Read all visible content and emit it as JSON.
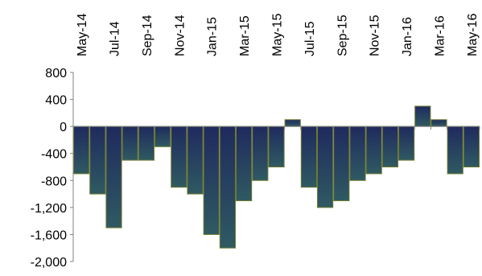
{
  "chart_data": {
    "type": "bar",
    "categories": [
      "May-14",
      "Jun-14",
      "Jul-14",
      "Aug-14",
      "Sep-14",
      "Oct-14",
      "Nov-14",
      "Dec-14",
      "Jan-15",
      "Feb-15",
      "Mar-15",
      "Apr-15",
      "May-15",
      "Jun-15",
      "Jul-15",
      "Aug-15",
      "Sep-15",
      "Oct-15",
      "Nov-15",
      "Dec-15",
      "Jan-16",
      "Feb-16",
      "Mar-16",
      "Apr-16",
      "May-16"
    ],
    "x_tick_labels": [
      "May-14",
      "Jul-14",
      "Sep-14",
      "Nov-14",
      "Jan-15",
      "Mar-15",
      "May-15",
      "Jul-15",
      "Sep-15",
      "Nov-15",
      "Jan-16",
      "Mar-16",
      "May-16"
    ],
    "values": [
      -700,
      -1000,
      -1500,
      -500,
      -500,
      -300,
      -900,
      -1000,
      -1600,
      -1800,
      -1100,
      -800,
      -600,
      100,
      -900,
      -1200,
      -1100,
      -800,
      -700,
      -600,
      -500,
      300,
      100,
      -700,
      -600
    ],
    "ylim": [
      -2000,
      800
    ],
    "y_ticks": [
      800,
      400,
      0,
      -400,
      -800,
      -1200,
      -1600,
      -2000
    ],
    "y_tick_labels": [
      "800",
      "400",
      "0",
      "-400",
      "-800",
      "-1,200",
      "-1,600",
      "-2,000"
    ],
    "title": "",
    "xlabel": "",
    "ylabel": "",
    "grid": false,
    "legend": "none",
    "colors": {
      "bar_top": "#1f2a5e",
      "bar_bottom": "#2f5a62",
      "bar_edge": "#6f7a2e",
      "axis": "#808080",
      "text": "#000000"
    }
  }
}
